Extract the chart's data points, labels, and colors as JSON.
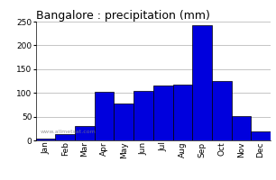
{
  "title": "Bangalore : precipitation (mm)",
  "months": [
    "Jan",
    "Feb",
    "Mar",
    "Apr",
    "May",
    "Jun",
    "Jul",
    "Aug",
    "Sep",
    "Oct",
    "Nov",
    "Dec"
  ],
  "values": [
    3,
    13,
    30,
    103,
    78,
    105,
    115,
    118,
    243,
    125,
    52,
    18
  ],
  "bar_color": "#0000dd",
  "bar_edge_color": "#000000",
  "bar_edge_width": 0.5,
  "ylim": [
    0,
    250
  ],
  "yticks": [
    0,
    50,
    100,
    150,
    200,
    250
  ],
  "background_color": "#ffffff",
  "grid_color": "#bbbbbb",
  "title_fontsize": 9,
  "tick_fontsize": 6.5,
  "watermark": "www.allmetsat.com"
}
